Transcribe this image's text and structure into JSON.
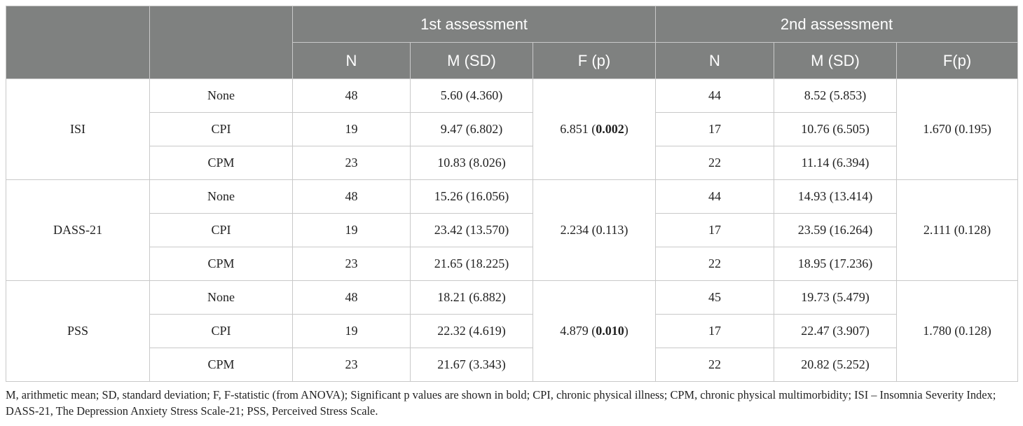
{
  "header": {
    "assessment_1": "1st assessment",
    "assessment_2": "2nd assessment",
    "col_n": "N",
    "col_m_sd": "M (SD)",
    "col_f_p_1": "F (p)",
    "col_f_p_2": "F(p)"
  },
  "measures": [
    {
      "name": "ISI",
      "rows": [
        {
          "group": "None",
          "n1": "48",
          "m1": "5.60 (4.360)",
          "n2": "44",
          "m2": "8.52 (5.853)"
        },
        {
          "group": "CPI",
          "n1": "19",
          "m1": "9.47 (6.802)",
          "n2": "17",
          "m2": "10.76 (6.505)"
        },
        {
          "group": "CPM",
          "n1": "23",
          "m1": "10.83 (8.026)",
          "n2": "22",
          "m2": "11.14 (6.394)"
        }
      ],
      "f1": "6.851",
      "p1": "0.002",
      "p1_bold": true,
      "f2": "1.670",
      "p2": "0.195",
      "p2_bold": false
    },
    {
      "name": "DASS-21",
      "rows": [
        {
          "group": "None",
          "n1": "48",
          "m1": "15.26 (16.056)",
          "n2": "44",
          "m2": "14.93 (13.414)"
        },
        {
          "group": "CPI",
          "n1": "19",
          "m1": "23.42 (13.570)",
          "n2": "17",
          "m2": "23.59 (16.264)"
        },
        {
          "group": "CPM",
          "n1": "23",
          "m1": "21.65 (18.225)",
          "n2": "22",
          "m2": "18.95 (17.236)"
        }
      ],
      "f1": "2.234",
      "p1": "0.113",
      "p1_bold": false,
      "f2": "2.111",
      "p2": "0.128",
      "p2_bold": false
    },
    {
      "name": "PSS",
      "rows": [
        {
          "group": "None",
          "n1": "48",
          "m1": "18.21 (6.882)",
          "n2": "45",
          "m2": "19.73 (5.479)"
        },
        {
          "group": "CPI",
          "n1": "19",
          "m1": "22.32 (4.619)",
          "n2": "17",
          "m2": "22.47 (3.907)"
        },
        {
          "group": "CPM",
          "n1": "23",
          "m1": "21.67 (3.343)",
          "n2": "22",
          "m2": "20.82 (5.252)"
        }
      ],
      "f1": "4.879",
      "p1": "0.010",
      "p1_bold": true,
      "f2": "1.780",
      "p2": "0.128",
      "p2_bold": false
    }
  ],
  "footnote": "M, arithmetic mean; SD, standard deviation; F, F-statistic (from ANOVA); Significant p values are shown in bold; CPI, chronic physical illness; CPM, chronic physical multimorbidity; ISI – Insomnia Severity Index; DASS-21, The Depression Anxiety Stress Scale-21; PSS, Perceived Stress Scale."
}
